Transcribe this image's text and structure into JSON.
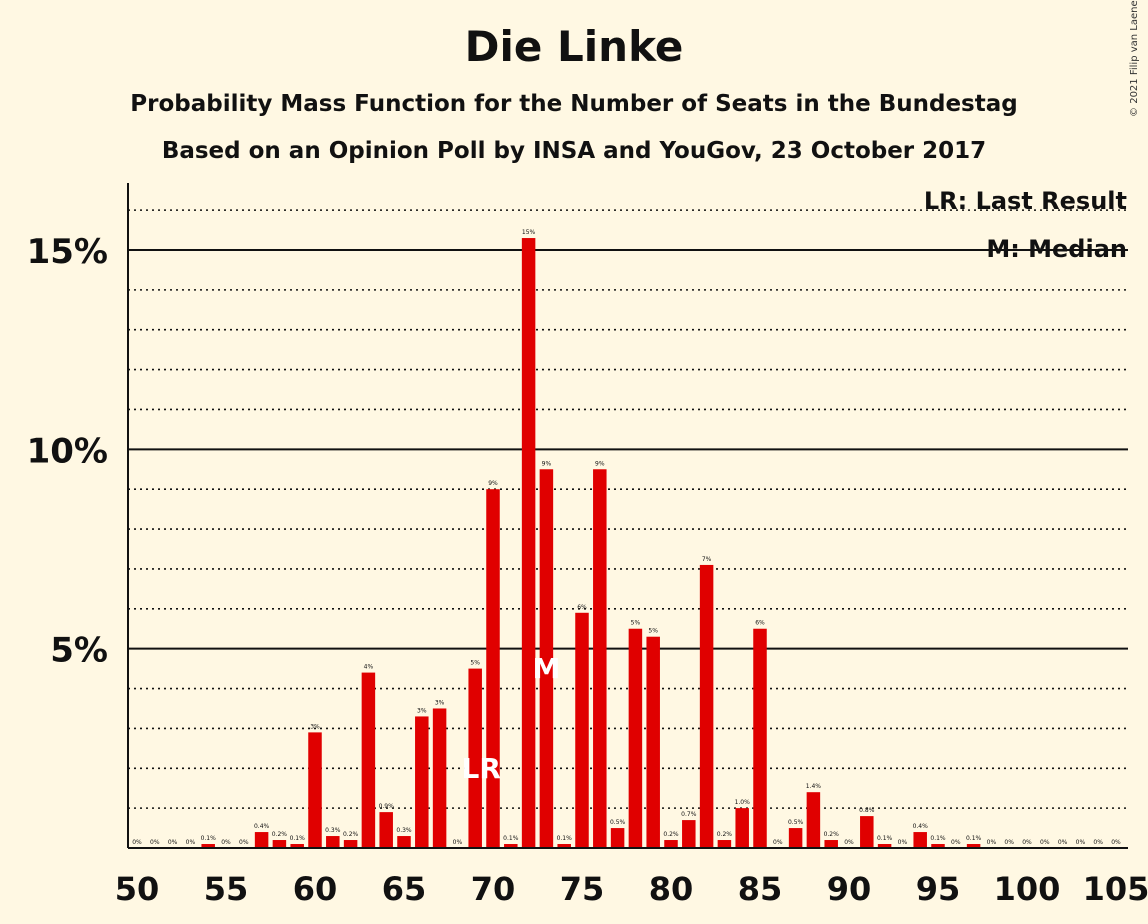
{
  "title": "Die Linke",
  "subtitle1": "Probability Mass Function for the Number of Seats in the Bundestag",
  "subtitle2": "Based on an Opinion Poll by INSA and YouGov, 23 October 2017",
  "copyright": "© 2021 Filip van Laenen",
  "colors": {
    "bar": "#E00000",
    "background": "#FFF8E3",
    "axis": "#111111",
    "marker_text": "#FFFFFF"
  },
  "legend": {
    "last_result": "LR: Last Result",
    "median": "M: Median"
  },
  "chart_data": {
    "type": "bar",
    "x": [
      50,
      51,
      52,
      53,
      54,
      55,
      56,
      57,
      58,
      59,
      60,
      61,
      62,
      63,
      64,
      65,
      66,
      67,
      68,
      69,
      70,
      71,
      72,
      73,
      74,
      75,
      76,
      77,
      78,
      79,
      80,
      81,
      82,
      83,
      84,
      85,
      86,
      87,
      88,
      89,
      90,
      91,
      92,
      93,
      94,
      95,
      96,
      97,
      98,
      99,
      100,
      101,
      102,
      103,
      104,
      105
    ],
    "values": [
      0,
      0,
      0,
      0,
      0.1,
      0,
      0,
      0.4,
      0.2,
      0.1,
      2.9,
      0.3,
      0.2,
      4.4,
      0.9,
      0.3,
      3.3,
      3.5,
      0,
      4.5,
      9.0,
      0.1,
      15.3,
      9.5,
      0.1,
      5.9,
      9.5,
      0.5,
      5.5,
      5.3,
      0.2,
      0.7,
      7.1,
      0.2,
      1.0,
      5.5,
      0,
      0.5,
      1.4,
      0.2,
      0,
      0.8,
      0.1,
      0,
      0.4,
      0.1,
      0,
      0.1,
      0,
      0,
      0,
      0,
      0,
      0,
      0,
      0
    ],
    "labels": [
      "0%",
      "0%",
      "0%",
      "0%",
      "0.1%",
      "0%",
      "0%",
      "0.4%",
      "0.2%",
      "0.1%",
      "3%",
      "0.3%",
      "0.2%",
      "4%",
      "0.9%",
      "0.3%",
      "3%",
      "3%",
      "0%",
      "5%",
      "9%",
      "0.1%",
      "15%",
      "9%",
      "0.1%",
      "6%",
      "9%",
      "0.5%",
      "5%",
      "5%",
      "0.2%",
      "0.7%",
      "7%",
      "0.2%",
      "1.0%",
      "6%",
      "0%",
      "0.5%",
      "1.4%",
      "0.2%",
      "0%",
      "0.8%",
      "0.1%",
      "0%",
      "0.4%",
      "0.1%",
      "0%",
      "0.1%",
      "0%",
      "0%",
      "0%",
      "0%",
      "0%",
      "0%",
      "0%",
      "0%"
    ],
    "x_ticks": [
      50,
      55,
      60,
      65,
      70,
      75,
      80,
      85,
      90,
      95,
      100,
      105
    ],
    "x_tick_labels": [
      "50",
      "55",
      "60",
      "65",
      "70",
      "75",
      "80",
      "85",
      "90",
      "95",
      "100",
      "105"
    ],
    "y_ticks": [
      5,
      10,
      15
    ],
    "y_tick_labels": [
      "5%",
      "10%",
      "15%"
    ],
    "ylim": [
      0,
      16.7
    ],
    "grid": "dotted minor every 1%, solid major every 5%",
    "last_result": {
      "seat": 69,
      "label": "LR"
    },
    "median": {
      "seat": 73,
      "label": "M"
    }
  }
}
